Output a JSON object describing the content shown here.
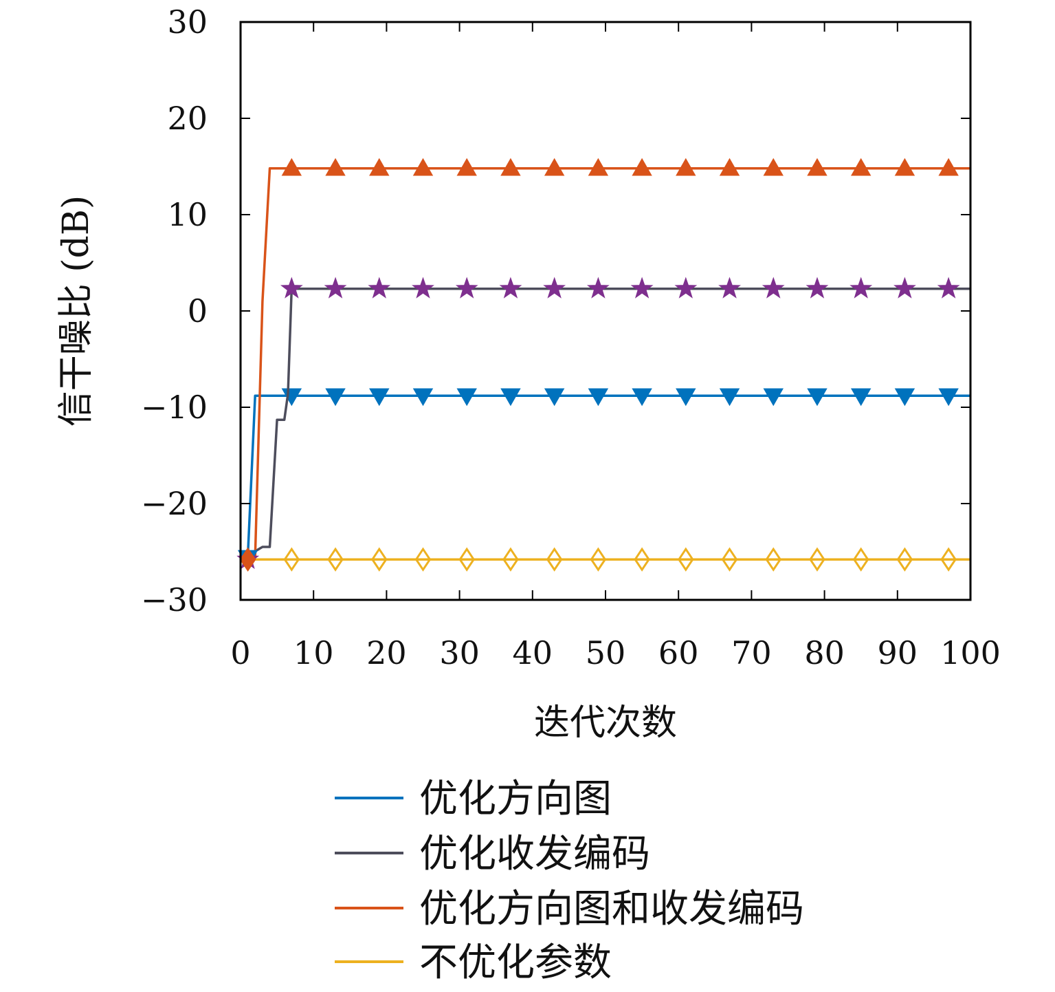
{
  "chart_data": {
    "type": "line",
    "xlabel": "迭代次数",
    "ylabel": "信干噪比 (dB)",
    "xlim": [
      0,
      100
    ],
    "ylim": [
      -30,
      30
    ],
    "xticks": [
      "0",
      "10",
      "20",
      "30",
      "40",
      "50",
      "60",
      "70",
      "80",
      "90",
      "100"
    ],
    "yticks": [
      "30",
      "20",
      "10",
      "0",
      "−10",
      "−20",
      "−30"
    ],
    "grid": false,
    "legend_position": "bottom",
    "series": [
      {
        "name": "优化方向图",
        "color": "#0072BD",
        "marker": "triangle-down",
        "x": [
          0,
          1,
          2,
          100
        ],
        "y": [
          -25.4,
          -25.4,
          -8.8,
          -8.8
        ],
        "marker_x": [
          7,
          13,
          19,
          25,
          31,
          37,
          43,
          49,
          55,
          61,
          67,
          73,
          79,
          85,
          91,
          97
        ],
        "marker_y": -8.8
      },
      {
        "name": "优化收发编码",
        "color": "#4D4D5C",
        "marker_color": "#7E2F8E",
        "marker": "star",
        "x": [
          0,
          1,
          3,
          4,
          5,
          6,
          6.5,
          7,
          100
        ],
        "y": [
          -25.4,
          -25.4,
          -24.5,
          -24.5,
          -11.3,
          -11.3,
          -8.6,
          2.3,
          2.3
        ],
        "marker_x": [
          7,
          13,
          19,
          25,
          31,
          37,
          43,
          49,
          55,
          61,
          67,
          73,
          79,
          85,
          91,
          97
        ],
        "marker_y": 2.3
      },
      {
        "name": "优化方向图和收发编码",
        "color": "#D95319",
        "marker": "triangle-up",
        "x": [
          0,
          1,
          2,
          3,
          4,
          100
        ],
        "y": [
          -25.6,
          -25.8,
          -25.6,
          1.0,
          14.8,
          14.8
        ],
        "marker_x": [
          7,
          13,
          19,
          25,
          31,
          37,
          43,
          49,
          55,
          61,
          67,
          73,
          79,
          85,
          91,
          97
        ],
        "marker_y": 14.8
      },
      {
        "name": "不优化参数",
        "color": "#EDB120",
        "marker": "diamond",
        "x": [
          0,
          100
        ],
        "y": [
          -25.8,
          -25.8
        ],
        "marker_x": [
          1,
          7,
          13,
          19,
          25,
          31,
          37,
          43,
          49,
          55,
          61,
          67,
          73,
          79,
          85,
          91,
          97
        ],
        "marker_y": -25.8
      }
    ]
  }
}
